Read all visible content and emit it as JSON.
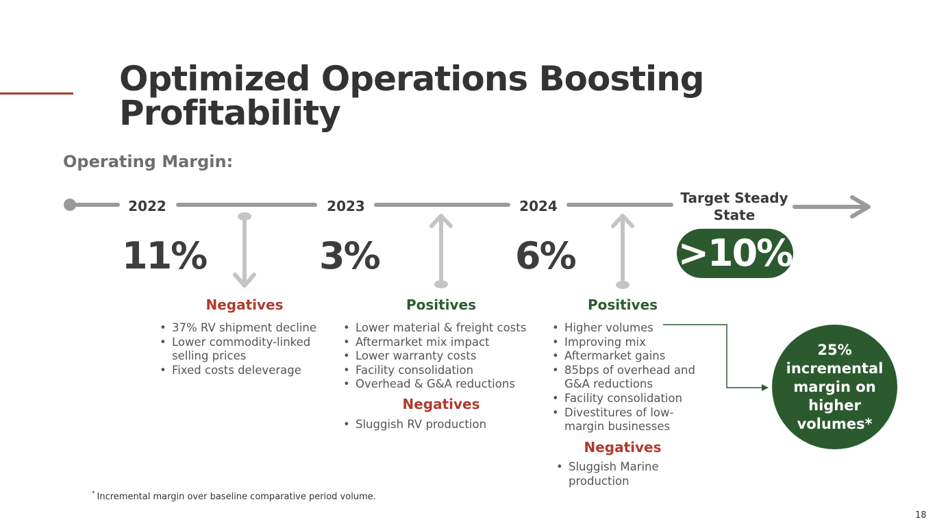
{
  "title": {
    "line1": "Optimized Operations Boosting",
    "line2": "Profitability"
  },
  "subtitle": "Operating Margin:",
  "timeline": {
    "years": [
      "2022",
      "2023",
      "2024"
    ],
    "target_label": "Target Steady State",
    "margins": [
      "11%",
      "3%",
      "6%"
    ],
    "target_margin": ">10%"
  },
  "col_2022": {
    "negatives_title": "Negatives",
    "negatives": [
      "37% RV shipment decline",
      "Lower commodity-linked selling prices",
      "Fixed costs deleverage"
    ]
  },
  "col_2023": {
    "positives_title": "Positives",
    "positives": [
      "Lower material & freight costs",
      "Aftermarket mix impact",
      "Lower warranty costs",
      "Facility consolidation",
      "Overhead & G&A reductions"
    ],
    "negatives_title": "Negatives",
    "negatives": [
      "Sluggish RV production"
    ]
  },
  "col_2024": {
    "positives_title": "Positives",
    "positives": [
      "Higher volumes",
      "Improving mix",
      "Aftermarket gains",
      "85bps of overhead and G&A reductions",
      "Facility consolidation",
      "Divestitures of low-margin businesses"
    ],
    "negatives_title": "Negatives",
    "negatives": [
      "Sluggish Marine production"
    ]
  },
  "callout": "25% incremental margin on higher volumes*",
  "footnote": {
    "marker": "*",
    "text": "Incremental margin over baseline comparative period volume."
  },
  "page_number": "18",
  "colors": {
    "accent_red": "#b03a2e",
    "brand_green": "#2c5a2f",
    "timeline_gray": "#9a9a9a",
    "arrow_gray": "#c4c4c4"
  }
}
